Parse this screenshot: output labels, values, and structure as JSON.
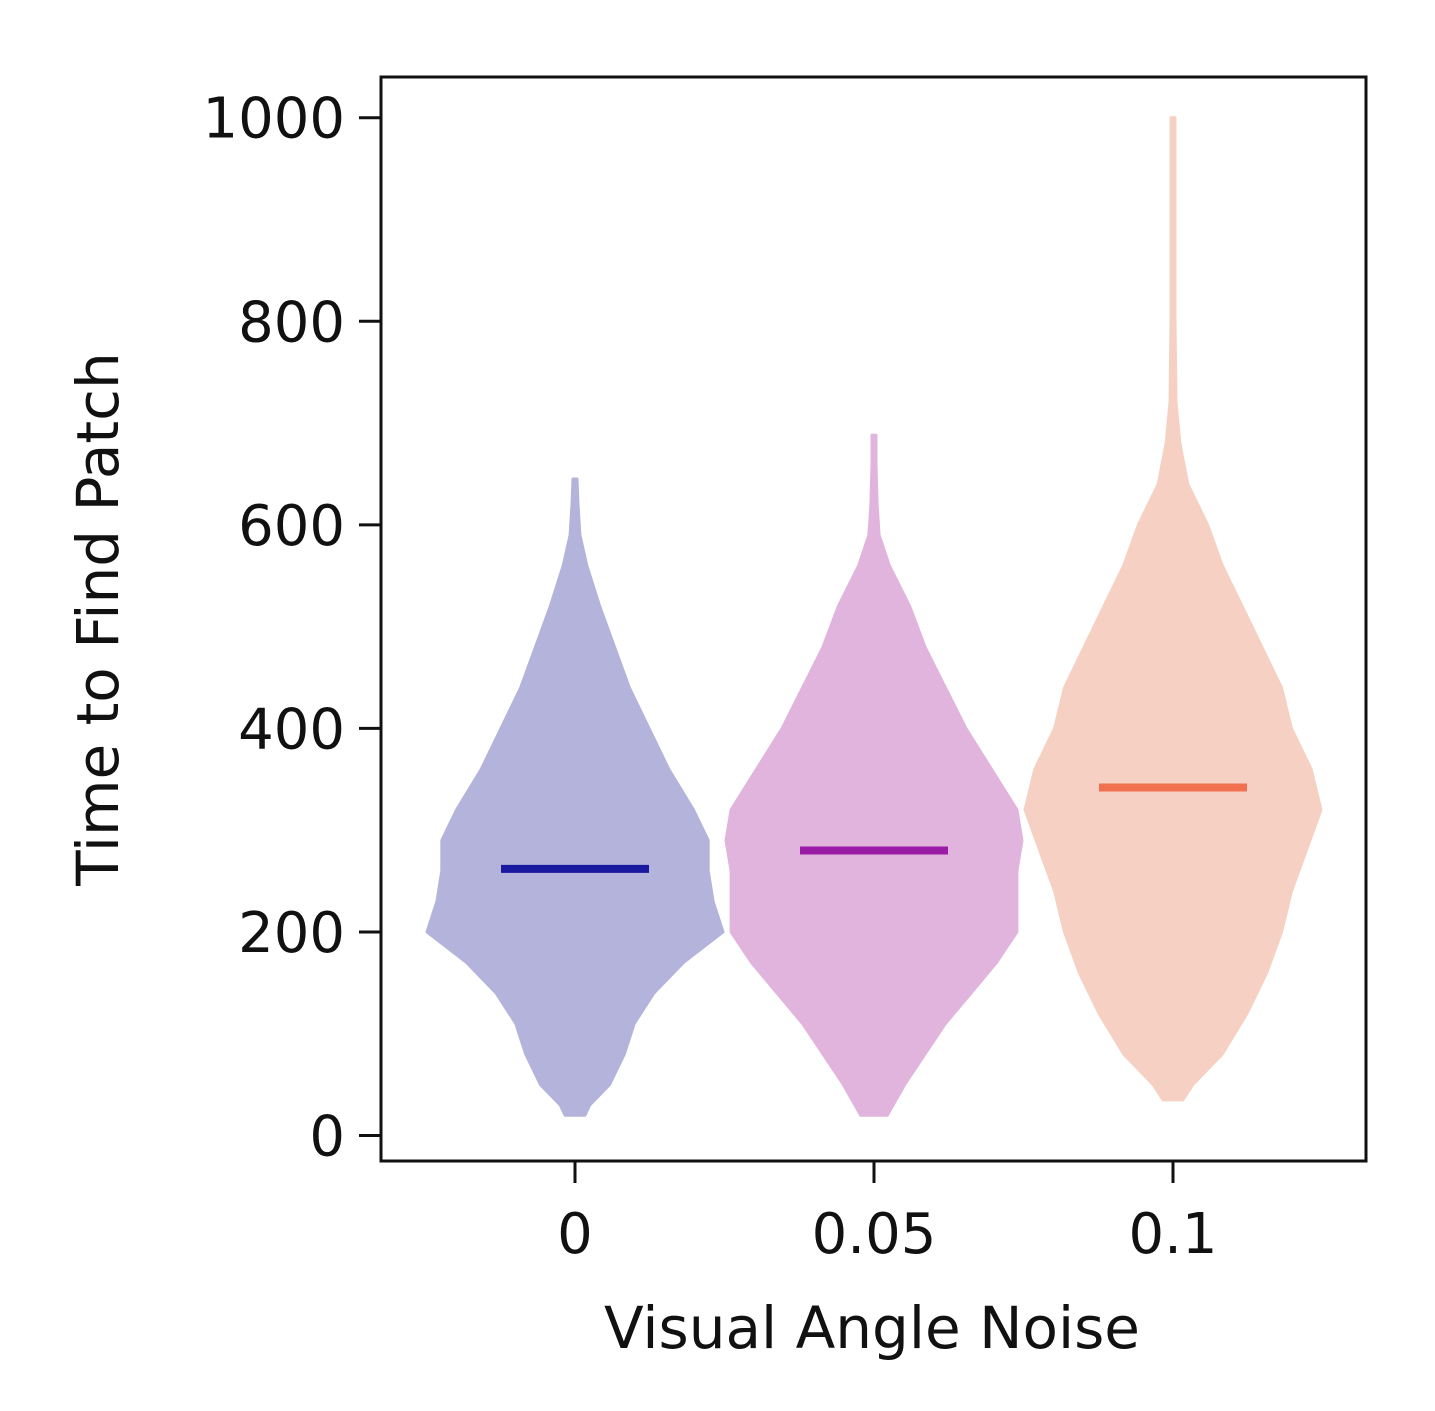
{
  "chart_data": {
    "type": "violin",
    "xlabel": "Visual Angle Noise",
    "ylabel": "Time to Find Patch",
    "ylim": [
      -25,
      1040
    ],
    "yticks": [
      0,
      200,
      400,
      600,
      800,
      1000
    ],
    "ytick_labels": [
      "0",
      "200",
      "400",
      "600",
      "800",
      "1000"
    ],
    "categories": [
      "0",
      "0.05",
      "0.1"
    ],
    "grid": false,
    "legend": "none",
    "series": [
      {
        "category": "0",
        "color": "#1a1aa0",
        "fill_color": "#b3b3db",
        "mean": 262,
        "min": 20,
        "max": 645,
        "profile": [
          [
            20,
            0.01
          ],
          [
            30,
            0.015
          ],
          [
            50,
            0.035
          ],
          [
            80,
            0.05
          ],
          [
            110,
            0.06
          ],
          [
            140,
            0.08
          ],
          [
            170,
            0.11
          ],
          [
            200,
            0.15
          ],
          [
            230,
            0.14
          ],
          [
            260,
            0.135
          ],
          [
            290,
            0.135
          ],
          [
            320,
            0.12
          ],
          [
            360,
            0.095
          ],
          [
            400,
            0.075
          ],
          [
            440,
            0.055
          ],
          [
            480,
            0.04
          ],
          [
            520,
            0.025
          ],
          [
            560,
            0.012
          ],
          [
            590,
            0.005
          ],
          [
            620,
            0.003
          ],
          [
            645,
            0.002
          ]
        ]
      },
      {
        "category": "0.05",
        "color": "#9b1aa6",
        "fill_color": "#e1b4de",
        "mean": 280,
        "min": 20,
        "max": 688,
        "profile": [
          [
            20,
            0.013
          ],
          [
            50,
            0.03
          ],
          [
            80,
            0.05
          ],
          [
            110,
            0.07
          ],
          [
            140,
            0.095
          ],
          [
            170,
            0.12
          ],
          [
            200,
            0.14
          ],
          [
            230,
            0.14
          ],
          [
            260,
            0.14
          ],
          [
            290,
            0.145
          ],
          [
            320,
            0.14
          ],
          [
            360,
            0.115
          ],
          [
            400,
            0.09
          ],
          [
            440,
            0.07
          ],
          [
            480,
            0.05
          ],
          [
            520,
            0.035
          ],
          [
            560,
            0.015
          ],
          [
            590,
            0.005
          ],
          [
            620,
            0.003
          ],
          [
            660,
            0.002
          ],
          [
            688,
            0.002
          ]
        ]
      },
      {
        "category": "0.1",
        "color": "#f07050",
        "fill_color": "#f6d0c3",
        "mean": 342,
        "min": 35,
        "max": 1000,
        "profile": [
          [
            35,
            0.01
          ],
          [
            50,
            0.02
          ],
          [
            80,
            0.05
          ],
          [
            120,
            0.075
          ],
          [
            160,
            0.095
          ],
          [
            200,
            0.11
          ],
          [
            240,
            0.12
          ],
          [
            280,
            0.135
          ],
          [
            320,
            0.15
          ],
          [
            360,
            0.14
          ],
          [
            400,
            0.12
          ],
          [
            440,
            0.11
          ],
          [
            480,
            0.09
          ],
          [
            520,
            0.07
          ],
          [
            560,
            0.05
          ],
          [
            600,
            0.035
          ],
          [
            640,
            0.015
          ],
          [
            680,
            0.007
          ],
          [
            720,
            0.003
          ],
          [
            800,
            0.002
          ],
          [
            900,
            0.002
          ],
          [
            1000,
            0.002
          ]
        ]
      }
    ]
  }
}
